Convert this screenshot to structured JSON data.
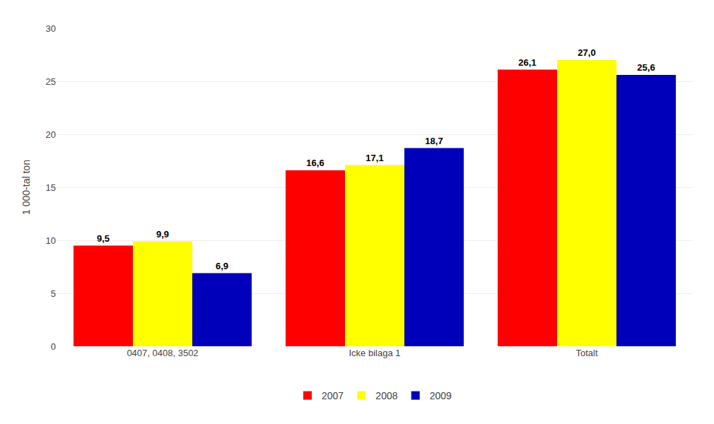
{
  "chart_data": {
    "type": "bar",
    "ylabel": "1 000-tal ton",
    "categories": [
      "0407, 0408, 3502",
      "Icke bilaga 1",
      "Totalt"
    ],
    "series": [
      {
        "name": "2007",
        "color": "#FF0000",
        "values": [
          9.5,
          16.6,
          26.1
        ],
        "value_labels": [
          "9,5",
          "16,6",
          "26,1"
        ]
      },
      {
        "name": "2008",
        "color": "#FFFF00",
        "values": [
          9.9,
          17.1,
          27.0
        ],
        "value_labels": [
          "9,9",
          "17,1",
          "27,0"
        ]
      },
      {
        "name": "2009",
        "color": "#0000BB",
        "values": [
          6.9,
          18.7,
          25.6
        ],
        "value_labels": [
          "6,9",
          "18,7",
          "25,6"
        ]
      }
    ],
    "ylim": [
      0,
      30
    ],
    "yticks": [
      0,
      5,
      10,
      15,
      20,
      25,
      30
    ],
    "grid": true,
    "legend": "bottom",
    "data_labels": true
  }
}
